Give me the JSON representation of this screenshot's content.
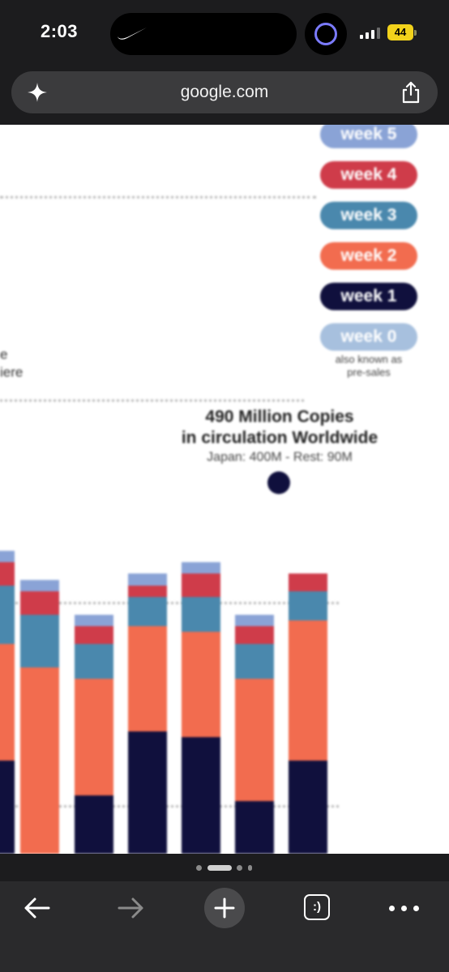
{
  "status_bar": {
    "time": "2:03",
    "battery": "44",
    "signal_bars_active": 3,
    "signal_bars_total": 4,
    "colors": {
      "battery": "#f2d21b",
      "activity_ring": "#7b7bff"
    }
  },
  "browser": {
    "url": "google.com",
    "icons": {
      "assistant": "sparkle-icon",
      "share": "share-icon"
    }
  },
  "legend": {
    "items": [
      {
        "label": "week 5",
        "color": "#8aa3d6"
      },
      {
        "label": "week 4",
        "color": "#cf3c4a"
      },
      {
        "label": "week 3",
        "color": "#4a88ad"
      },
      {
        "label": "week 2",
        "color": "#f26c4f"
      },
      {
        "label": "week 1",
        "color": "#10103d"
      },
      {
        "label": "week 0",
        "color": "#a7c0de"
      }
    ],
    "week0_note_line1": "also known as",
    "week0_note_line2": "pre-sales"
  },
  "fragments": {
    "line1": "e",
    "line2": "iere"
  },
  "annotation": {
    "title_line1": "490 Million Copies",
    "title_line2": "in circulation Worldwide",
    "subtitle": "Japan: 400M - Rest: 90M"
  },
  "chart_data": {
    "type": "bar",
    "stacked": true,
    "title": "",
    "legend_position": "right",
    "grid": true,
    "note": "Cropped, blurred stacked bar chart; values estimated as relative proportions (0 = chart baseline, 100 = top of visible plot area).",
    "series": [
      {
        "name": "week 1",
        "color": "#10103d",
        "values": [
          16,
          0,
          10,
          21,
          20,
          9,
          16
        ]
      },
      {
        "name": "week 2",
        "color": "#f26c4f",
        "values": [
          20,
          32,
          20,
          18,
          18,
          21,
          24
        ]
      },
      {
        "name": "week 3",
        "color": "#4a88ad",
        "values": [
          10,
          9,
          6,
          5,
          6,
          6,
          5
        ]
      },
      {
        "name": "week 4",
        "color": "#cf3c4a",
        "values": [
          4,
          4,
          3,
          2,
          4,
          3,
          3
        ]
      },
      {
        "name": "week 5",
        "color": "#8aa3d6",
        "values": [
          2,
          2,
          2,
          2,
          2,
          2,
          0
        ]
      }
    ]
  },
  "toolbar": {
    "back": "back-arrow-icon",
    "forward": "forward-arrow-icon",
    "new_tab": "plus-icon",
    "tabs_label": ":)",
    "more": "more-icon",
    "page_indicator_count": 4,
    "page_indicator_active": 1
  }
}
